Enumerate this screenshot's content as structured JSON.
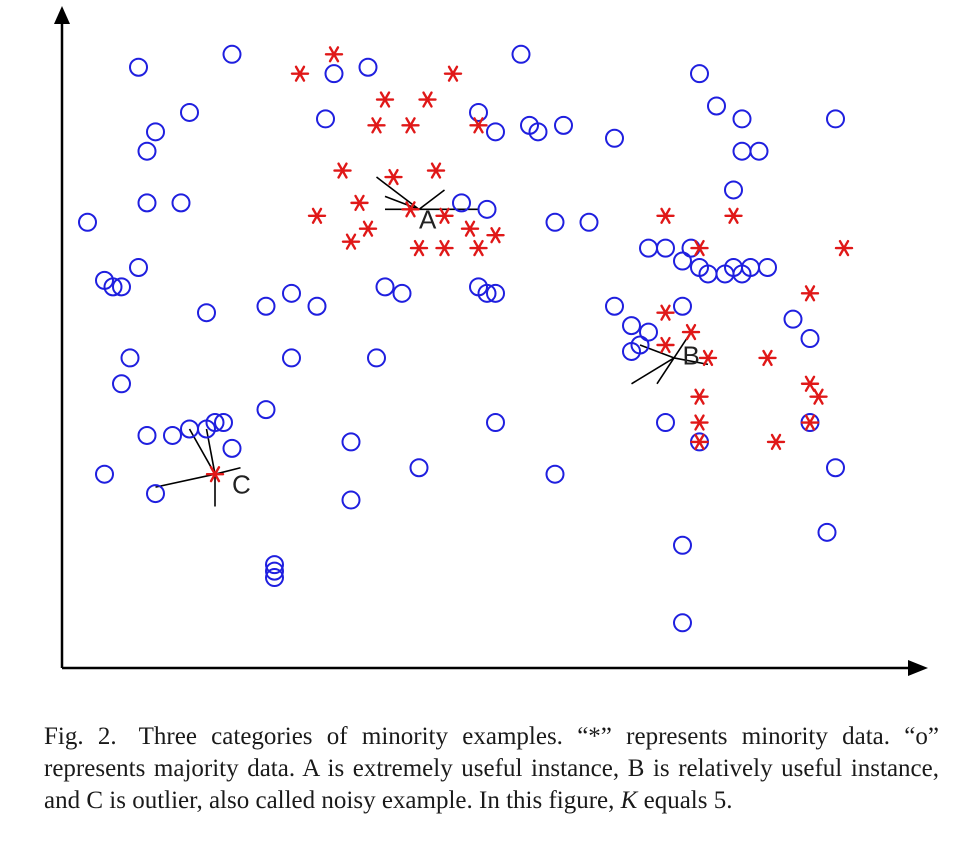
{
  "figure": {
    "chart_data": {
      "type": "scatter",
      "title": "",
      "xlabel": "",
      "ylabel": "",
      "xlim": [
        0,
        100
      ],
      "ylim": [
        0,
        100
      ],
      "grid": false,
      "series": [
        {
          "marker": "o",
          "color": "#1f1fdf",
          "points": [
            [
              9,
              93
            ],
            [
              20,
              95
            ],
            [
              32,
              92
            ],
            [
              15,
              86
            ],
            [
              11,
              83
            ],
            [
              10,
              80
            ],
            [
              31,
              85
            ],
            [
              36,
              93
            ],
            [
              54,
              95
            ],
            [
              49,
              86
            ],
            [
              55,
              84
            ],
            [
              56,
              83
            ],
            [
              59,
              84
            ],
            [
              65,
              82
            ],
            [
              77,
              87
            ],
            [
              75,
              92
            ],
            [
              80,
              85
            ],
            [
              80,
              80
            ],
            [
              82,
              80
            ],
            [
              91,
              85
            ],
            [
              79,
              74
            ],
            [
              3,
              69
            ],
            [
              10,
              72
            ],
            [
              14,
              72
            ],
            [
              47,
              72
            ],
            [
              50,
              71
            ],
            [
              58,
              69
            ],
            [
              62,
              69
            ],
            [
              69,
              65
            ],
            [
              71,
              65
            ],
            [
              73,
              63
            ],
            [
              74,
              65
            ],
            [
              75,
              62
            ],
            [
              76,
              61
            ],
            [
              78,
              61
            ],
            [
              79,
              62
            ],
            [
              80,
              61
            ],
            [
              81,
              62
            ],
            [
              83,
              62
            ],
            [
              86,
              54
            ],
            [
              5,
              60
            ],
            [
              6,
              59
            ],
            [
              7,
              59
            ],
            [
              9,
              62
            ],
            [
              17,
              55
            ],
            [
              24,
              56
            ],
            [
              27,
              58
            ],
            [
              30,
              56
            ],
            [
              38,
              59
            ],
            [
              40,
              58
            ],
            [
              49,
              59
            ],
            [
              50,
              58
            ],
            [
              51,
              58
            ],
            [
              73,
              56
            ],
            [
              65,
              56
            ],
            [
              67,
              53
            ],
            [
              68,
              50
            ],
            [
              67,
              49
            ],
            [
              69,
              52
            ],
            [
              88,
              51
            ],
            [
              37,
              48
            ],
            [
              24,
              40
            ],
            [
              27,
              48
            ],
            [
              8,
              48
            ],
            [
              7,
              44
            ],
            [
              10,
              36
            ],
            [
              13,
              36
            ],
            [
              15,
              37
            ],
            [
              17,
              37
            ],
            [
              18,
              38
            ],
            [
              19,
              38
            ],
            [
              20,
              34
            ],
            [
              5,
              30
            ],
            [
              11,
              27
            ],
            [
              34,
              35
            ],
            [
              51,
              38
            ],
            [
              71,
              38
            ],
            [
              75,
              35
            ],
            [
              88,
              38
            ],
            [
              91,
              31
            ],
            [
              42,
              31
            ],
            [
              58,
              30
            ],
            [
              34,
              26
            ],
            [
              25,
              16
            ],
            [
              25,
              15
            ],
            [
              25,
              14
            ],
            [
              73,
              19
            ],
            [
              90,
              21
            ],
            [
              73,
              7
            ],
            [
              51,
              83
            ]
          ]
        },
        {
          "marker": "*",
          "color": "#e01818",
          "points": [
            [
              32,
              95
            ],
            [
              28,
              92
            ],
            [
              46,
              92
            ],
            [
              38,
              88
            ],
            [
              43,
              88
            ],
            [
              37,
              84
            ],
            [
              41,
              84
            ],
            [
              49,
              84
            ],
            [
              33,
              77
            ],
            [
              39,
              76
            ],
            [
              44,
              77
            ],
            [
              35,
              72
            ],
            [
              41,
              71
            ],
            [
              45,
              70
            ],
            [
              30,
              70
            ],
            [
              36,
              68
            ],
            [
              48,
              68
            ],
            [
              51,
              67
            ],
            [
              34,
              66
            ],
            [
              42,
              65
            ],
            [
              45,
              65
            ],
            [
              49,
              65
            ],
            [
              71,
              70
            ],
            [
              79,
              70
            ],
            [
              92,
              65
            ],
            [
              75,
              65
            ],
            [
              88,
              58
            ],
            [
              71,
              55
            ],
            [
              74,
              52
            ],
            [
              71,
              50
            ],
            [
              76,
              48
            ],
            [
              83,
              48
            ],
            [
              88,
              44
            ],
            [
              89,
              42
            ],
            [
              75,
              42
            ],
            [
              75,
              38
            ],
            [
              75,
              35
            ],
            [
              84,
              35
            ],
            [
              88,
              38
            ],
            [
              18,
              30
            ]
          ]
        }
      ],
      "annotations": [
        {
          "text": "A",
          "x": 42,
          "y": 68
        },
        {
          "text": "B",
          "x": 73,
          "y": 47
        },
        {
          "text": "C",
          "x": 20,
          "y": 27
        }
      ],
      "links": [
        {
          "from": [
            42,
            71
          ],
          "to": [
            37,
            76
          ]
        },
        {
          "from": [
            42,
            71
          ],
          "to": [
            38,
            73
          ]
        },
        {
          "from": [
            42,
            71
          ],
          "to": [
            45,
            74
          ]
        },
        {
          "from": [
            42,
            71
          ],
          "to": [
            49,
            71
          ]
        },
        {
          "from": [
            42,
            71
          ],
          "to": [
            38,
            71
          ]
        },
        {
          "from": [
            72,
            48
          ],
          "to": [
            74,
            52
          ]
        },
        {
          "from": [
            72,
            48
          ],
          "to": [
            68,
            50
          ]
        },
        {
          "from": [
            72,
            48
          ],
          "to": [
            76,
            47
          ]
        },
        {
          "from": [
            72,
            48
          ],
          "to": [
            70,
            44
          ]
        },
        {
          "from": [
            72,
            48
          ],
          "to": [
            67,
            44
          ]
        },
        {
          "from": [
            18,
            30
          ],
          "to": [
            15,
            37
          ]
        },
        {
          "from": [
            18,
            30
          ],
          "to": [
            17,
            37
          ]
        },
        {
          "from": [
            18,
            30
          ],
          "to": [
            21,
            31
          ]
        },
        {
          "from": [
            18,
            30
          ],
          "to": [
            11,
            28
          ]
        },
        {
          "from": [
            18,
            30
          ],
          "to": [
            18,
            25
          ]
        }
      ]
    }
  },
  "caption": {
    "label": "Fig. 2.",
    "text_before_k": "Three categories of minority examples. “*” represents minority data. “o” represents majority data. A is extremely useful instance, B is relatively useful instance, and C is outlier, also called noisy example. In this figure,",
    "k_variable": "K",
    "text_after_k": "equals 5."
  }
}
